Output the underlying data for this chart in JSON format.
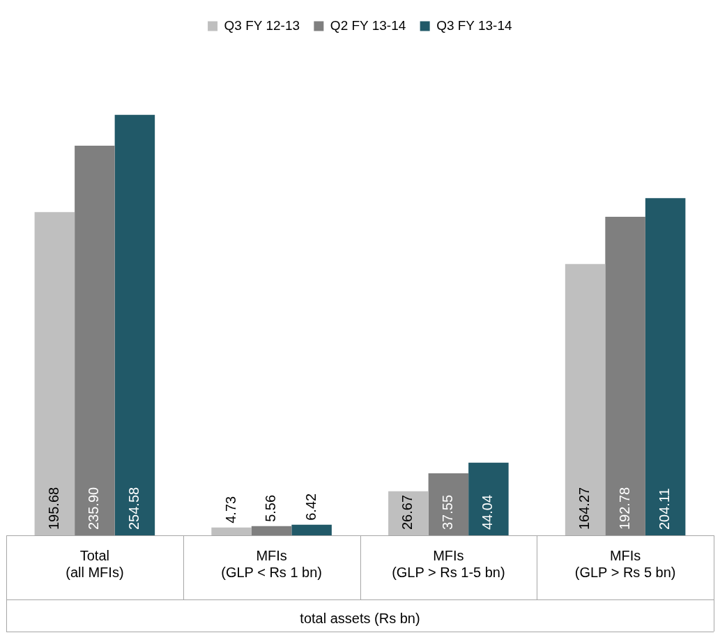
{
  "chart_data": {
    "type": "bar",
    "xlabel": "total assets (Rs bn)",
    "categories": [
      "Total\n(all MFIs)",
      "MFIs\n(GLP < Rs 1 bn)",
      "MFIs\n(GLP > Rs 1-5 bn)",
      "MFIs\n(GLP > Rs 5 bn)"
    ],
    "series": [
      {
        "name": "Q3 FY 12-13",
        "color": "#bfbfbf",
        "values": [
          195.68,
          4.73,
          26.67,
          164.27
        ],
        "value_labels": [
          "195.68",
          "4.73",
          "26.67",
          "164.27"
        ]
      },
      {
        "name": "Q2 FY 13-14",
        "color": "#7f7f7f",
        "values": [
          235.9,
          5.56,
          37.55,
          192.78
        ],
        "value_labels": [
          "235.90",
          "5.56",
          "37.55",
          "192.78"
        ]
      },
      {
        "name": "Q3 FY 13-14",
        "color": "#215968",
        "values": [
          254.58,
          6.42,
          44.04,
          204.11
        ],
        "value_labels": [
          "254.58",
          "6.42",
          "44.04",
          "204.11"
        ]
      }
    ],
    "legend": "top",
    "grid": false
  }
}
